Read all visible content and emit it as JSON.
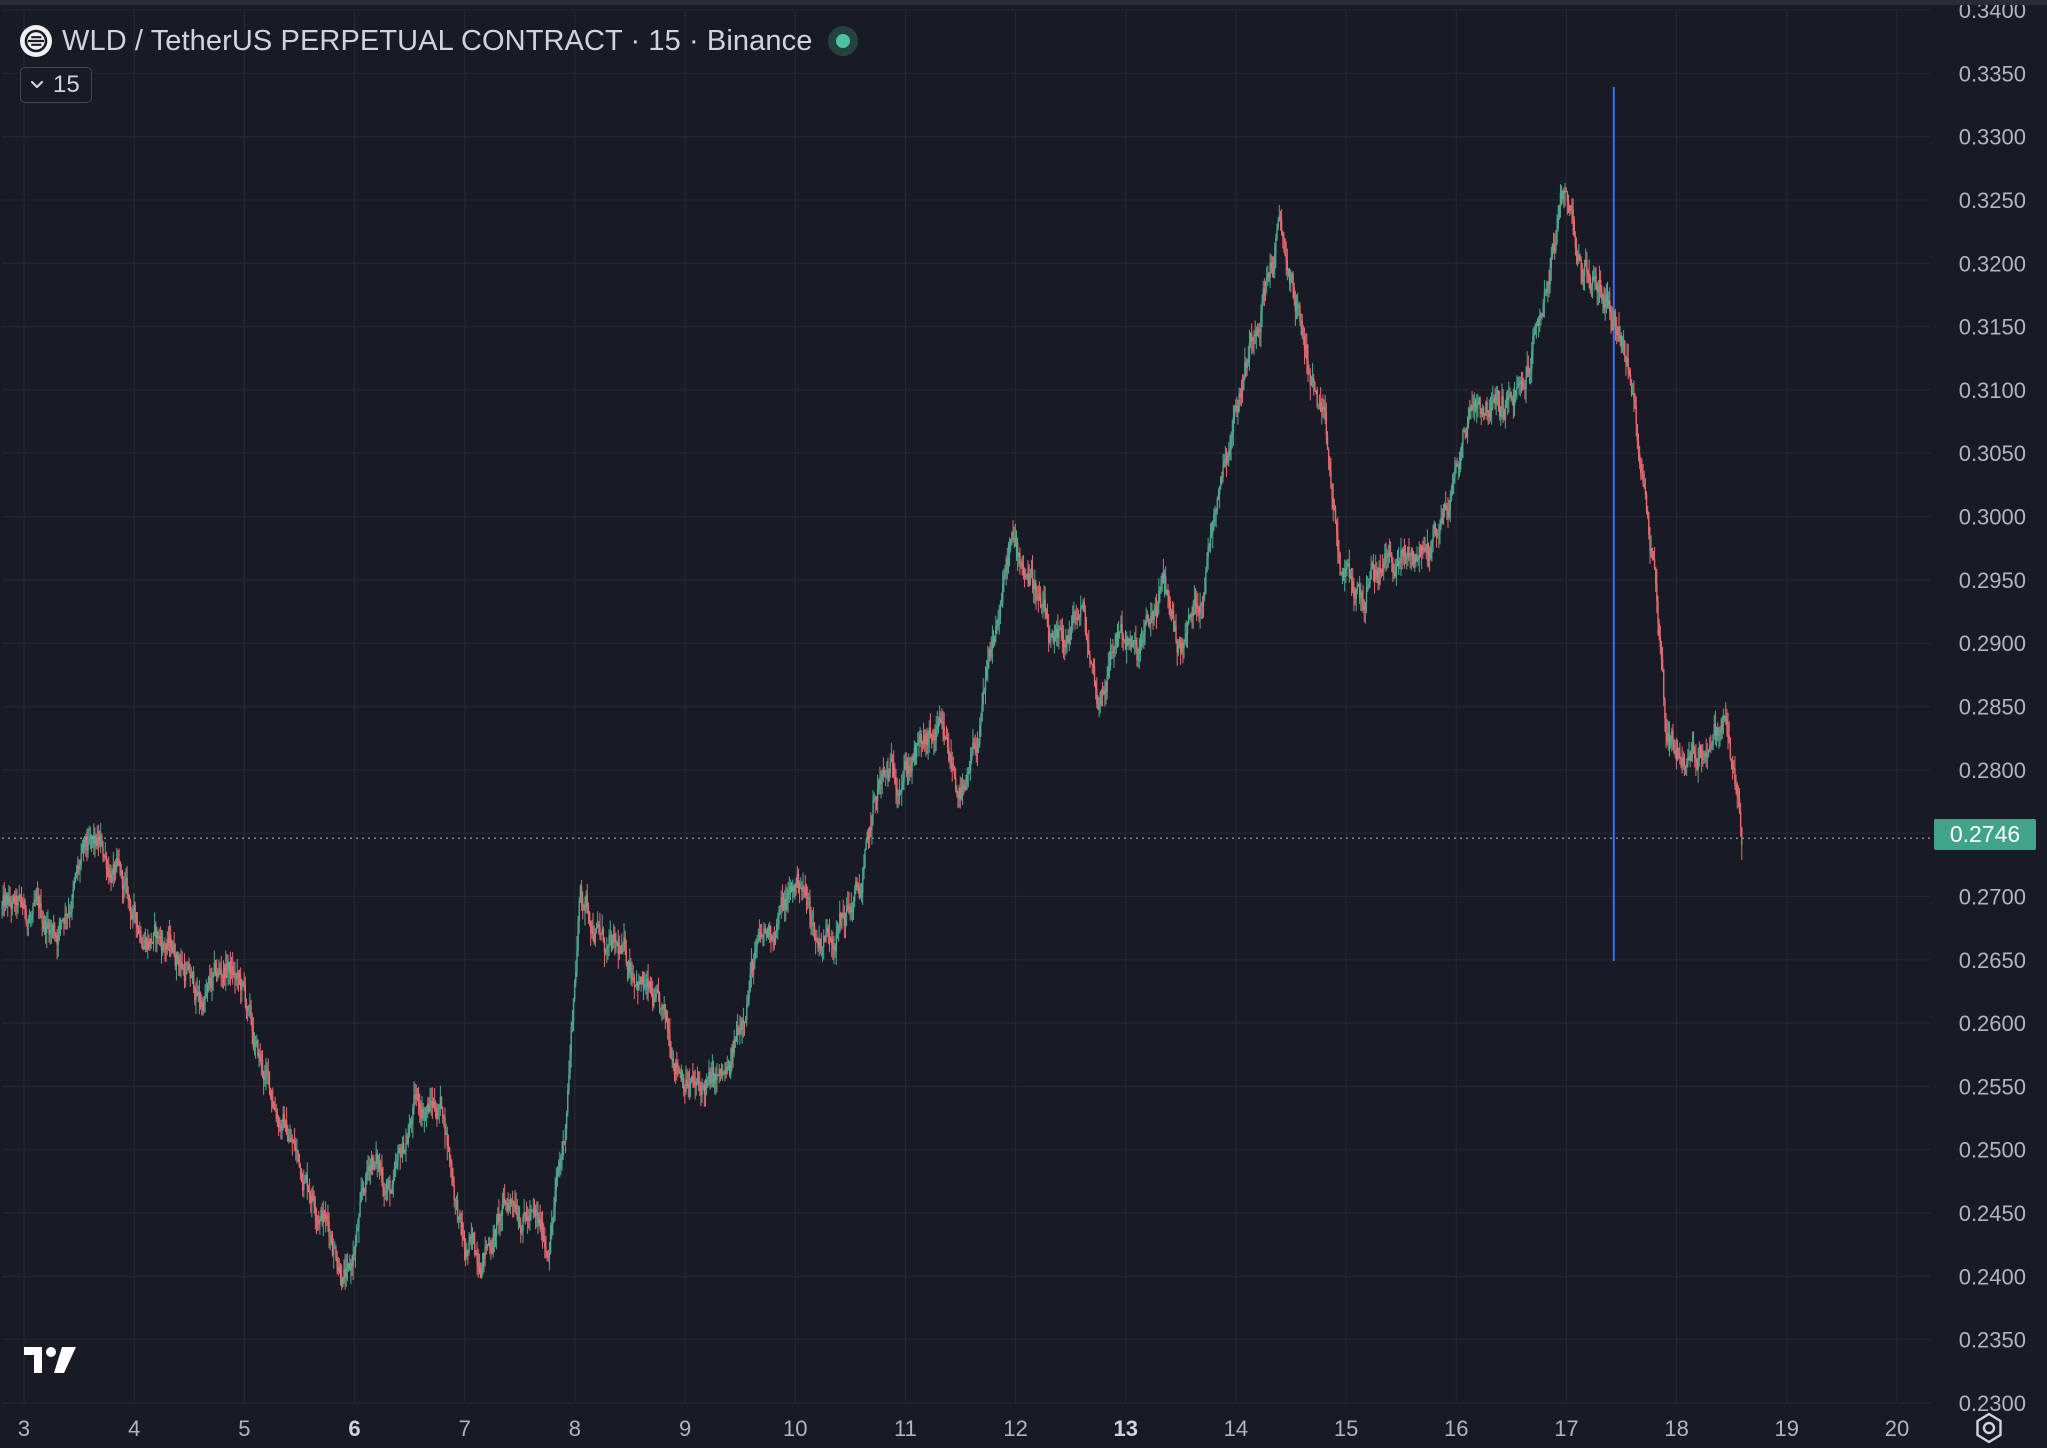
{
  "header": {
    "title": "WLD / TetherUS PERPETUAL CONTRACT · 15 · Binance",
    "logo_icon": "worldcoin-logo-icon",
    "live_icon": "market-open-dot-icon"
  },
  "interval_toggle": {
    "label": "15",
    "icon": "chevron-down-icon"
  },
  "price_axis": {
    "labels": [
      "0.3400",
      "0.3350",
      "0.3300",
      "0.3250",
      "0.3200",
      "0.3150",
      "0.3100",
      "0.3050",
      "0.3000",
      "0.2950",
      "0.2900",
      "0.2850",
      "0.2800",
      "0.2750",
      "0.2700",
      "0.2650",
      "0.2600",
      "0.2550",
      "0.2500",
      "0.2450",
      "0.2400",
      "0.2350",
      "0.2300"
    ]
  },
  "time_axis": {
    "labels": [
      "3",
      "4",
      "5",
      "6",
      "7",
      "8",
      "9",
      "10",
      "11",
      "12",
      "13",
      "14",
      "15",
      "16",
      "17",
      "18",
      "19",
      "20"
    ],
    "bold": [
      "6",
      "13"
    ]
  },
  "last_price": {
    "label": "0.2746",
    "value": 0.2746
  },
  "colors": {
    "background": "#181b25",
    "up": "#4fa88f",
    "down": "#e56b6f",
    "grid": "#252834",
    "badge": "#40a48a",
    "vertical_line": "#3f6fe0"
  },
  "chart_data": {
    "type": "candlestick",
    "title": "WLD / TetherUS PERPETUAL CONTRACT · 15 · Binance",
    "interval": "15",
    "ylim": [
      0.23,
      0.34
    ],
    "xlim": [
      2.8,
      20.3
    ],
    "x_unit": "day of month",
    "grid": true,
    "last_price": 0.2746,
    "vertical_marker_x": 17.43,
    "price_path": [
      [
        2.8,
        0.269
      ],
      [
        3.0,
        0.2685
      ],
      [
        3.3,
        0.2675
      ],
      [
        3.55,
        0.273
      ],
      [
        3.7,
        0.2735
      ],
      [
        3.85,
        0.2715
      ],
      [
        4.0,
        0.268
      ],
      [
        4.4,
        0.2655
      ],
      [
        4.6,
        0.2615
      ],
      [
        4.85,
        0.2645
      ],
      [
        5.0,
        0.262
      ],
      [
        5.1,
        0.2575
      ],
      [
        5.5,
        0.249
      ],
      [
        5.7,
        0.2455
      ],
      [
        5.95,
        0.2395
      ],
      [
        6.15,
        0.2495
      ],
      [
        6.35,
        0.2465
      ],
      [
        6.55,
        0.2535
      ],
      [
        6.8,
        0.2535
      ],
      [
        7.0,
        0.2415
      ],
      [
        7.2,
        0.2425
      ],
      [
        7.45,
        0.2465
      ],
      [
        7.75,
        0.2425
      ],
      [
        7.9,
        0.2505
      ],
      [
        8.05,
        0.2705
      ],
      [
        8.3,
        0.2655
      ],
      [
        8.55,
        0.2645
      ],
      [
        8.75,
        0.2605
      ],
      [
        9.1,
        0.2545
      ],
      [
        9.4,
        0.2555
      ],
      [
        9.6,
        0.2645
      ],
      [
        9.85,
        0.2685
      ],
      [
        10.05,
        0.2715
      ],
      [
        10.2,
        0.2665
      ],
      [
        10.45,
        0.2685
      ],
      [
        10.6,
        0.2705
      ],
      [
        10.75,
        0.2785
      ],
      [
        11.0,
        0.2805
      ],
      [
        11.3,
        0.2825
      ],
      [
        11.55,
        0.2775
      ],
      [
        11.7,
        0.2845
      ],
      [
        11.95,
        0.2975
      ],
      [
        12.15,
        0.2955
      ],
      [
        12.35,
        0.2885
      ],
      [
        12.6,
        0.2925
      ],
      [
        12.75,
        0.2855
      ],
      [
        12.95,
        0.2915
      ],
      [
        13.1,
        0.2885
      ],
      [
        13.35,
        0.2945
      ],
      [
        13.5,
        0.2895
      ],
      [
        13.7,
        0.2945
      ],
      [
        13.85,
        0.3035
      ],
      [
        14.05,
        0.3105
      ],
      [
        14.2,
        0.3165
      ],
      [
        14.4,
        0.3225
      ],
      [
        14.6,
        0.3145
      ],
      [
        14.8,
        0.3065
      ],
      [
        14.95,
        0.2955
      ],
      [
        15.15,
        0.2935
      ],
      [
        15.35,
        0.2965
      ],
      [
        15.55,
        0.2965
      ],
      [
        15.75,
        0.2975
      ],
      [
        15.95,
        0.3015
      ],
      [
        16.15,
        0.3095
      ],
      [
        16.4,
        0.3085
      ],
      [
        16.6,
        0.3095
      ],
      [
        16.8,
        0.3175
      ],
      [
        17.0,
        0.3255
      ],
      [
        17.15,
        0.3195
      ],
      [
        17.35,
        0.3175
      ],
      [
        17.5,
        0.3145
      ],
      [
        17.65,
        0.3065
      ],
      [
        17.8,
        0.2965
      ],
      [
        17.9,
        0.2835
      ],
      [
        18.1,
        0.2805
      ],
      [
        18.3,
        0.2825
      ],
      [
        18.45,
        0.2835
      ],
      [
        18.6,
        0.2745
      ]
    ]
  }
}
